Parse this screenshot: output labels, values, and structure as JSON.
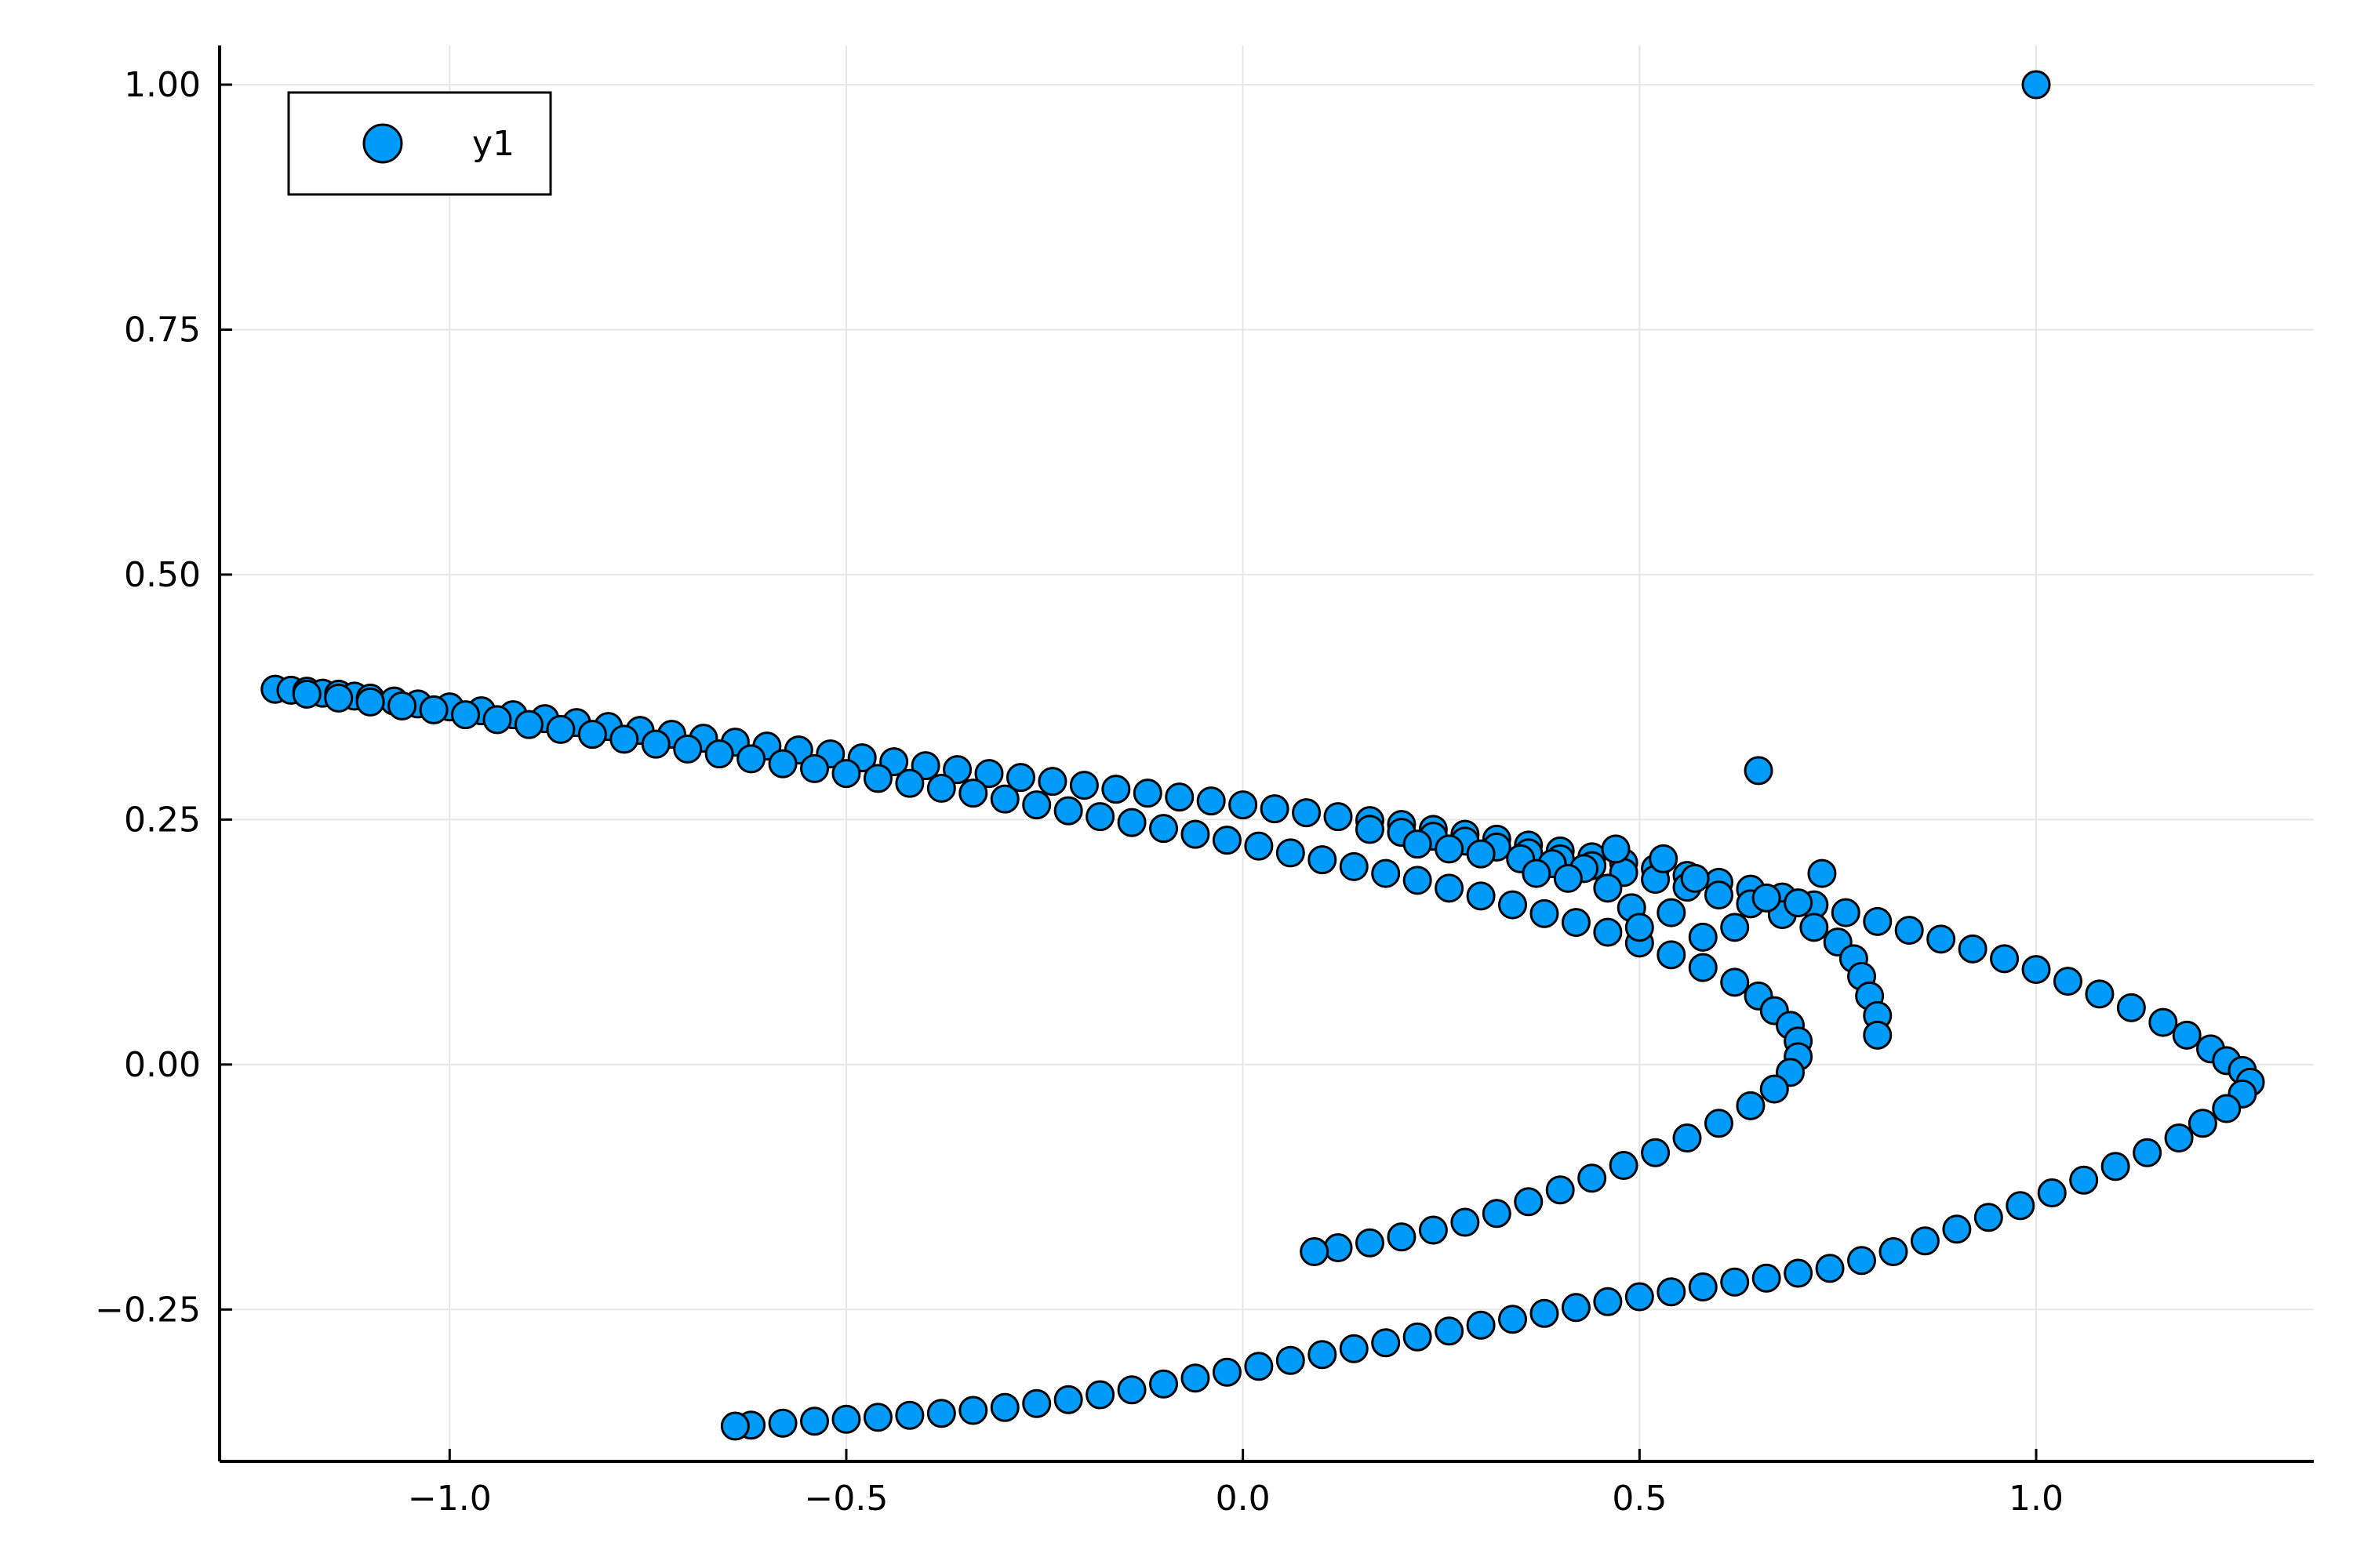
{
  "chart_data": {
    "type": "scatter",
    "title": "",
    "xlabel": "",
    "ylabel": "",
    "xlim": [
      -1.29,
      1.35
    ],
    "ylim": [
      -0.405,
      1.04
    ],
    "grid": true,
    "legend_position": "top-left",
    "x_ticks": [
      {
        "value": -1.0,
        "label": "−1.0"
      },
      {
        "value": -0.5,
        "label": "−0.5"
      },
      {
        "value": 0.0,
        "label": "0.0"
      },
      {
        "value": 0.5,
        "label": "0.5"
      },
      {
        "value": 1.0,
        "label": "1.0"
      }
    ],
    "y_ticks": [
      {
        "value": -0.25,
        "label": "−0.25"
      },
      {
        "value": 0.0,
        "label": "0.00"
      },
      {
        "value": 0.25,
        "label": "0.25"
      },
      {
        "value": 0.5,
        "label": "0.50"
      },
      {
        "value": 0.75,
        "label": "0.75"
      },
      {
        "value": 1.0,
        "label": "1.00"
      }
    ],
    "series": [
      {
        "name": "y1",
        "color": "#009af9",
        "edge_color": "#000000",
        "points": [
          [
            1.0,
            1.0
          ],
          [
            0.65,
            0.3
          ],
          [
            0.73,
            0.195
          ],
          [
            -1.22,
            0.383
          ],
          [
            -1.2,
            0.382
          ],
          [
            -1.18,
            0.381
          ],
          [
            -1.16,
            0.379
          ],
          [
            -1.14,
            0.378
          ],
          [
            -1.12,
            0.376
          ],
          [
            -1.1,
            0.374
          ],
          [
            -1.07,
            0.371
          ],
          [
            -1.04,
            0.368
          ],
          [
            -1.0,
            0.365
          ],
          [
            -0.96,
            0.361
          ],
          [
            -0.92,
            0.357
          ],
          [
            -0.88,
            0.353
          ],
          [
            -0.84,
            0.349
          ],
          [
            -0.8,
            0.345
          ],
          [
            -0.76,
            0.341
          ],
          [
            -0.72,
            0.337
          ],
          [
            -0.68,
            0.333
          ],
          [
            -0.64,
            0.329
          ],
          [
            -0.6,
            0.325
          ],
          [
            -0.56,
            0.321
          ],
          [
            -0.52,
            0.317
          ],
          [
            -0.48,
            0.313
          ],
          [
            -0.44,
            0.309
          ],
          [
            -0.4,
            0.305
          ],
          [
            -0.36,
            0.301
          ],
          [
            -0.32,
            0.297
          ],
          [
            -0.28,
            0.293
          ],
          [
            -0.24,
            0.289
          ],
          [
            -0.2,
            0.285
          ],
          [
            -0.16,
            0.281
          ],
          [
            -0.12,
            0.277
          ],
          [
            -0.08,
            0.273
          ],
          [
            -0.04,
            0.269
          ],
          [
            0.0,
            0.265
          ],
          [
            0.04,
            0.261
          ],
          [
            0.08,
            0.257
          ],
          [
            0.12,
            0.253
          ],
          [
            0.16,
            0.249
          ],
          [
            0.2,
            0.245
          ],
          [
            0.24,
            0.24
          ],
          [
            0.28,
            0.235
          ],
          [
            0.32,
            0.23
          ],
          [
            0.36,
            0.224
          ],
          [
            0.4,
            0.218
          ],
          [
            0.44,
            0.212
          ],
          [
            0.48,
            0.206
          ],
          [
            0.52,
            0.2
          ],
          [
            0.56,
            0.193
          ],
          [
            0.6,
            0.186
          ],
          [
            0.64,
            0.179
          ],
          [
            0.68,
            0.171
          ],
          [
            0.72,
            0.163
          ],
          [
            0.76,
            0.155
          ],
          [
            0.8,
            0.146
          ],
          [
            0.84,
            0.137
          ],
          [
            0.88,
            0.128
          ],
          [
            0.92,
            0.118
          ],
          [
            0.96,
            0.108
          ],
          [
            1.0,
            0.097
          ],
          [
            1.04,
            0.085
          ],
          [
            1.08,
            0.072
          ],
          [
            1.12,
            0.058
          ],
          [
            1.16,
            0.043
          ],
          [
            1.19,
            0.03
          ],
          [
            1.22,
            0.016
          ],
          [
            1.24,
            0.004
          ],
          [
            1.26,
            -0.006
          ],
          [
            1.27,
            -0.018
          ],
          [
            1.26,
            -0.03
          ],
          [
            1.24,
            -0.045
          ],
          [
            1.21,
            -0.06
          ],
          [
            1.18,
            -0.075
          ],
          [
            1.14,
            -0.09
          ],
          [
            1.1,
            -0.104
          ],
          [
            1.06,
            -0.118
          ],
          [
            1.02,
            -0.131
          ],
          [
            0.98,
            -0.144
          ],
          [
            0.94,
            -0.156
          ],
          [
            0.9,
            -0.168
          ],
          [
            0.86,
            -0.18
          ],
          [
            0.82,
            -0.191
          ],
          [
            0.78,
            -0.2
          ],
          [
            0.74,
            -0.208
          ],
          [
            0.7,
            -0.213
          ],
          [
            0.66,
            -0.218
          ],
          [
            0.62,
            -0.222
          ],
          [
            0.58,
            -0.227
          ],
          [
            0.54,
            -0.232
          ],
          [
            0.5,
            -0.237
          ],
          [
            0.46,
            -0.242
          ],
          [
            0.42,
            -0.248
          ],
          [
            0.38,
            -0.254
          ],
          [
            0.34,
            -0.26
          ],
          [
            0.3,
            -0.266
          ],
          [
            0.26,
            -0.272
          ],
          [
            0.22,
            -0.278
          ],
          [
            0.18,
            -0.284
          ],
          [
            0.14,
            -0.29
          ],
          [
            0.1,
            -0.296
          ],
          [
            0.06,
            -0.302
          ],
          [
            0.02,
            -0.308
          ],
          [
            -0.02,
            -0.314
          ],
          [
            -0.06,
            -0.32
          ],
          [
            -0.1,
            -0.326
          ],
          [
            -0.14,
            -0.332
          ],
          [
            -0.18,
            -0.337
          ],
          [
            -0.22,
            -0.342
          ],
          [
            -0.26,
            -0.346
          ],
          [
            -0.3,
            -0.35
          ],
          [
            -0.34,
            -0.353
          ],
          [
            -0.38,
            -0.356
          ],
          [
            -0.42,
            -0.358
          ],
          [
            -0.46,
            -0.36
          ],
          [
            -0.5,
            -0.362
          ],
          [
            -0.54,
            -0.364
          ],
          [
            -0.58,
            -0.366
          ],
          [
            -0.62,
            -0.368
          ],
          [
            -0.64,
            -0.369
          ],
          [
            -1.18,
            0.378
          ],
          [
            -1.14,
            0.374
          ],
          [
            -1.1,
            0.37
          ],
          [
            -1.06,
            0.366
          ],
          [
            -1.02,
            0.362
          ],
          [
            -0.98,
            0.357
          ],
          [
            -0.94,
            0.352
          ],
          [
            -0.9,
            0.347
          ],
          [
            -0.86,
            0.342
          ],
          [
            -0.82,
            0.337
          ],
          [
            -0.78,
            0.332
          ],
          [
            -0.74,
            0.327
          ],
          [
            -0.7,
            0.322
          ],
          [
            -0.66,
            0.317
          ],
          [
            -0.62,
            0.312
          ],
          [
            -0.58,
            0.307
          ],
          [
            -0.54,
            0.302
          ],
          [
            -0.5,
            0.297
          ],
          [
            -0.46,
            0.292
          ],
          [
            -0.42,
            0.287
          ],
          [
            -0.38,
            0.282
          ],
          [
            -0.34,
            0.277
          ],
          [
            -0.3,
            0.271
          ],
          [
            -0.26,
            0.265
          ],
          [
            -0.22,
            0.259
          ],
          [
            -0.18,
            0.253
          ],
          [
            -0.14,
            0.247
          ],
          [
            -0.1,
            0.241
          ],
          [
            -0.06,
            0.235
          ],
          [
            -0.02,
            0.229
          ],
          [
            0.02,
            0.223
          ],
          [
            0.06,
            0.216
          ],
          [
            0.1,
            0.209
          ],
          [
            0.14,
            0.202
          ],
          [
            0.18,
            0.195
          ],
          [
            0.22,
            0.188
          ],
          [
            0.26,
            0.18
          ],
          [
            0.3,
            0.172
          ],
          [
            0.34,
            0.163
          ],
          [
            0.38,
            0.154
          ],
          [
            0.42,
            0.145
          ],
          [
            0.46,
            0.135
          ],
          [
            0.5,
            0.124
          ],
          [
            0.54,
            0.112
          ],
          [
            0.58,
            0.099
          ],
          [
            0.62,
            0.084
          ],
          [
            0.65,
            0.07
          ],
          [
            0.67,
            0.055
          ],
          [
            0.69,
            0.04
          ],
          [
            0.7,
            0.024
          ],
          [
            0.7,
            0.008
          ],
          [
            0.69,
            -0.008
          ],
          [
            0.67,
            -0.025
          ],
          [
            0.64,
            -0.042
          ],
          [
            0.6,
            -0.06
          ],
          [
            0.56,
            -0.075
          ],
          [
            0.52,
            -0.09
          ],
          [
            0.48,
            -0.103
          ],
          [
            0.44,
            -0.116
          ],
          [
            0.4,
            -0.128
          ],
          [
            0.36,
            -0.14
          ],
          [
            0.32,
            -0.152
          ],
          [
            0.28,
            -0.161
          ],
          [
            0.24,
            -0.169
          ],
          [
            0.2,
            -0.176
          ],
          [
            0.16,
            -0.182
          ],
          [
            0.12,
            -0.187
          ],
          [
            0.09,
            -0.191
          ],
          [
            0.16,
            0.24
          ],
          [
            0.2,
            0.237
          ],
          [
            0.24,
            0.233
          ],
          [
            0.28,
            0.228
          ],
          [
            0.32,
            0.222
          ],
          [
            0.36,
            0.216
          ],
          [
            0.4,
            0.21
          ],
          [
            0.44,
            0.203
          ],
          [
            0.48,
            0.196
          ],
          [
            0.52,
            0.189
          ],
          [
            0.56,
            0.181
          ],
          [
            0.6,
            0.173
          ],
          [
            0.64,
            0.164
          ],
          [
            0.68,
            0.153
          ],
          [
            0.72,
            0.14
          ],
          [
            0.75,
            0.125
          ],
          [
            0.77,
            0.108
          ],
          [
            0.78,
            0.09
          ],
          [
            0.79,
            0.07
          ],
          [
            0.8,
            0.05
          ],
          [
            0.8,
            0.03
          ],
          [
            0.35,
            0.21
          ],
          [
            0.39,
            0.205
          ],
          [
            0.43,
            0.2
          ],
          [
            0.47,
            0.22
          ],
          [
            0.53,
            0.21
          ],
          [
            0.57,
            0.19
          ],
          [
            0.41,
            0.19
          ],
          [
            0.37,
            0.195
          ],
          [
            0.49,
            0.16
          ],
          [
            0.54,
            0.155
          ],
          [
            0.46,
            0.18
          ],
          [
            0.66,
            0.17
          ],
          [
            0.7,
            0.165
          ],
          [
            0.62,
            0.14
          ],
          [
            0.58,
            0.13
          ],
          [
            0.5,
            0.14
          ],
          [
            0.26,
            0.22
          ],
          [
            0.22,
            0.225
          ],
          [
            0.3,
            0.215
          ]
        ]
      }
    ]
  }
}
